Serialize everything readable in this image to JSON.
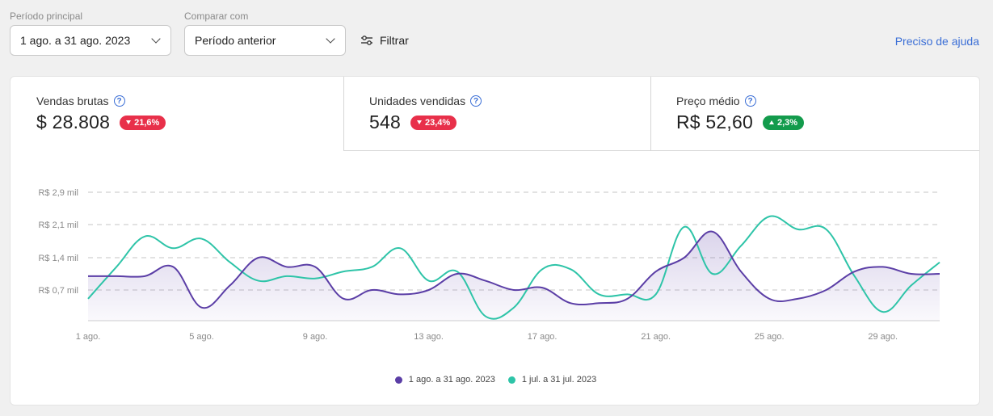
{
  "filters": {
    "period_label": "Período principal",
    "period_value": "1 ago. a 31 ago. 2023",
    "compare_label": "Comparar com",
    "compare_value": "Período anterior",
    "filter_label": "Filtrar",
    "help_link": "Preciso de ajuda"
  },
  "kpis": [
    {
      "title": "Vendas brutas",
      "value": "$ 28.808",
      "change": "21,6%",
      "direction": "down"
    },
    {
      "title": "Unidades vendidas",
      "value": "548",
      "change": "23,4%",
      "direction": "down"
    },
    {
      "title": "Preço médio",
      "value": "R$ 52,60",
      "change": "2,3%",
      "direction": "up"
    }
  ],
  "colors": {
    "current": "#5b3ea6",
    "previous": "#2ec4a8",
    "negative": "#e8304a",
    "positive": "#139b4c",
    "link": "#3a6ed6"
  },
  "chart_data": {
    "type": "line",
    "y_ticks": [
      {
        "value": 700,
        "label": "R$ 0,7 mil"
      },
      {
        "value": 1400,
        "label": "R$ 1,4 mil"
      },
      {
        "value": 2100,
        "label": "R$ 2,1 mil"
      },
      {
        "value": 2900,
        "label": "R$ 2,9 mil"
      }
    ],
    "ylim": [
      0,
      2900
    ],
    "x_ticks": [
      {
        "day": 1,
        "label": "1 ago."
      },
      {
        "day": 5,
        "label": "5 ago."
      },
      {
        "day": 9,
        "label": "9 ago."
      },
      {
        "day": 13,
        "label": "13 ago."
      },
      {
        "day": 17,
        "label": "17 ago."
      },
      {
        "day": 21,
        "label": "21 ago."
      },
      {
        "day": 25,
        "label": "25 ago."
      },
      {
        "day": 29,
        "label": "29 ago."
      }
    ],
    "xlim": [
      1,
      31
    ],
    "series": [
      {
        "name": "1 ago. a 31 ago. 2023",
        "color": "#5b3ea6",
        "filled": true,
        "values": [
          1000,
          1000,
          1000,
          1200,
          300,
          800,
          1400,
          1200,
          1200,
          500,
          700,
          600,
          700,
          1050,
          900,
          700,
          750,
          400,
          400,
          500,
          1100,
          1400,
          1950,
          1100,
          500,
          500,
          700,
          1100,
          1200,
          1050,
          1050
        ]
      },
      {
        "name": "1 jul. a 31 jul. 2023",
        "color": "#2ec4a8",
        "filled": false,
        "values": [
          500,
          1200,
          1850,
          1600,
          1800,
          1300,
          900,
          1000,
          950,
          1100,
          1200,
          1600,
          900,
          1100,
          100,
          300,
          1150,
          1150,
          600,
          600,
          600,
          2050,
          1050,
          1650,
          2300,
          2000,
          2000,
          1000,
          200,
          800,
          1300
        ]
      }
    ]
  }
}
